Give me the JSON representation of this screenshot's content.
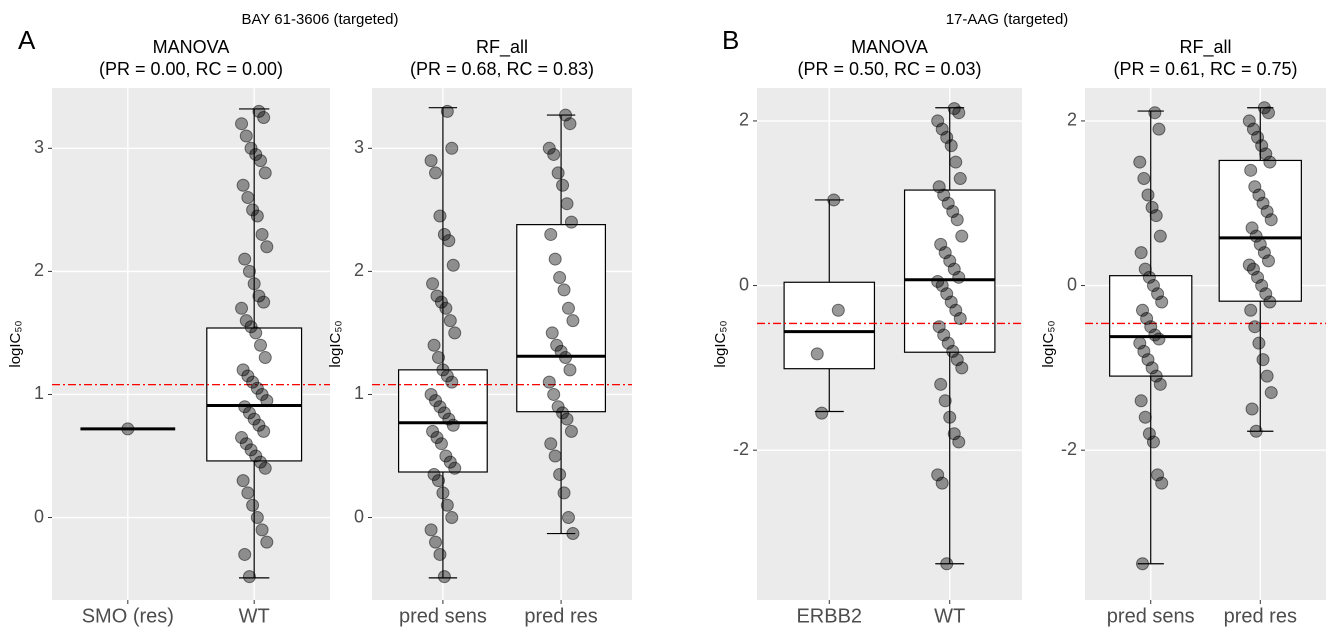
{
  "figure": {
    "panels": [
      {
        "letter": "A",
        "title": "BAY 61-3606 (targeted)"
      },
      {
        "letter": "B",
        "title": "17-AAG (targeted)"
      }
    ]
  },
  "chart_data": [
    {
      "type": "box",
      "title": "MANOVA",
      "subtitle": "(PR = 0.00, RC = 0.00)",
      "ylabel": "logIC₅₀",
      "categories": [
        "SMO (res)",
        "WT"
      ],
      "boxes": [
        {
          "whisker_low": 0.72,
          "q1": 0.72,
          "median": 0.72,
          "q3": 0.72,
          "whisker_high": 0.72
        },
        {
          "whisker_low": -0.49,
          "q1": 0.46,
          "median": 0.91,
          "q3": 1.54,
          "whisker_high": 3.32
        }
      ],
      "points": [
        [
          0.72
        ],
        [
          3.3,
          3.25,
          3.2,
          3.1,
          3.0,
          2.95,
          2.9,
          2.8,
          2.7,
          2.6,
          2.5,
          2.45,
          2.3,
          2.2,
          2.1,
          2.0,
          1.9,
          1.8,
          1.75,
          1.7,
          1.6,
          1.55,
          1.5,
          1.4,
          1.3,
          1.2,
          1.15,
          1.1,
          1.05,
          1.0,
          0.95,
          0.9,
          0.85,
          0.8,
          0.75,
          0.7,
          0.65,
          0.6,
          0.55,
          0.5,
          0.45,
          0.4,
          0.3,
          0.2,
          0.1,
          0.0,
          -0.1,
          -0.2,
          -0.3,
          -0.48
        ]
      ],
      "hline": 1.08,
      "hline_color": "#ff0000",
      "point_color": "#000000",
      "ylim": [
        -0.67,
        3.49
      ],
      "yticks": [
        0,
        1,
        2,
        3
      ],
      "grid": true
    },
    {
      "type": "box",
      "title": "RF_all",
      "subtitle": "(PR = 0.68, RC = 0.83)",
      "ylabel": "logIC₅₀",
      "categories": [
        "pred sens",
        "pred res"
      ],
      "boxes": [
        {
          "whisker_low": -0.49,
          "q1": 0.37,
          "median": 0.77,
          "q3": 1.2,
          "whisker_high": 3.33
        },
        {
          "whisker_low": -0.13,
          "q1": 0.86,
          "median": 1.31,
          "q3": 2.38,
          "whisker_high": 3.27
        }
      ],
      "points": [
        [
          3.3,
          3.0,
          2.9,
          2.8,
          2.45,
          2.3,
          2.25,
          2.05,
          1.9,
          1.8,
          1.75,
          1.7,
          1.6,
          1.5,
          1.4,
          1.3,
          1.2,
          1.15,
          1.1,
          1.0,
          0.95,
          0.9,
          0.85,
          0.8,
          0.75,
          0.7,
          0.65,
          0.6,
          0.5,
          0.45,
          0.4,
          0.35,
          0.3,
          0.2,
          0.1,
          0.0,
          -0.1,
          -0.2,
          -0.3,
          -0.48
        ],
        [
          3.27,
          3.2,
          3.0,
          2.95,
          2.8,
          2.7,
          2.55,
          2.4,
          2.3,
          2.1,
          1.95,
          1.85,
          1.7,
          1.6,
          1.5,
          1.4,
          1.35,
          1.3,
          1.2,
          1.1,
          1.0,
          0.9,
          0.85,
          0.8,
          0.7,
          0.6,
          0.5,
          0.35,
          0.2,
          0.0,
          -0.13
        ]
      ],
      "hline": 1.08,
      "hline_color": "#ff0000",
      "point_color": "#000000",
      "ylim": [
        -0.67,
        3.49
      ],
      "yticks": [
        0,
        1,
        2,
        3
      ],
      "grid": true
    },
    {
      "type": "box",
      "title": "MANOVA",
      "subtitle": "(PR = 0.50, RC = 0.03)",
      "ylabel": "logIC₅₀",
      "categories": [
        "ERBB2",
        "WT"
      ],
      "boxes": [
        {
          "whisker_low": -1.53,
          "q1": -1.01,
          "median": -0.56,
          "q3": 0.04,
          "whisker_high": 1.04
        },
        {
          "whisker_low": -3.38,
          "q1": -0.81,
          "median": 0.07,
          "q3": 1.16,
          "whisker_high": 2.16
        }
      ],
      "points": [
        [
          1.04,
          -0.3,
          -0.83,
          -1.55
        ],
        [
          2.15,
          2.1,
          2.0,
          1.9,
          1.8,
          1.7,
          1.5,
          1.3,
          1.2,
          1.1,
          1.0,
          0.9,
          0.8,
          0.6,
          0.5,
          0.4,
          0.3,
          0.2,
          0.1,
          0.05,
          0.0,
          -0.1,
          -0.2,
          -0.3,
          -0.4,
          -0.5,
          -0.6,
          -0.7,
          -0.8,
          -0.9,
          -1.0,
          -1.2,
          -1.4,
          -1.6,
          -1.8,
          -1.9,
          -2.3,
          -2.4,
          -3.38
        ]
      ],
      "hline": -0.46,
      "hline_color": "#ff0000",
      "point_color": "#000000",
      "ylim": [
        -3.82,
        2.4
      ],
      "yticks": [
        -2,
        0,
        2
      ],
      "grid": true
    },
    {
      "type": "box",
      "title": "RF_all",
      "subtitle": "(PR = 0.61, RC = 0.75)",
      "ylabel": "logIC₅₀",
      "categories": [
        "pred sens",
        "pred res"
      ],
      "boxes": [
        {
          "whisker_low": -3.38,
          "q1": -1.1,
          "median": -0.62,
          "q3": 0.12,
          "whisker_high": 2.12
        },
        {
          "whisker_low": -1.77,
          "q1": -0.19,
          "median": 0.58,
          "q3": 1.52,
          "whisker_high": 2.16
        }
      ],
      "points": [
        [
          2.1,
          1.9,
          1.5,
          1.3,
          1.1,
          0.95,
          0.85,
          0.6,
          0.4,
          0.2,
          0.1,
          0.0,
          -0.1,
          -0.2,
          -0.3,
          -0.4,
          -0.5,
          -0.6,
          -0.65,
          -0.7,
          -0.8,
          -0.9,
          -1.0,
          -1.1,
          -1.2,
          -1.4,
          -1.6,
          -1.8,
          -1.9,
          -2.3,
          -2.4,
          -3.38
        ],
        [
          2.16,
          2.1,
          2.0,
          1.9,
          1.8,
          1.7,
          1.6,
          1.5,
          1.4,
          1.2,
          1.1,
          1.0,
          0.9,
          0.8,
          0.7,
          0.6,
          0.5,
          0.4,
          0.3,
          0.25,
          0.2,
          0.1,
          0.0,
          -0.1,
          -0.2,
          -0.3,
          -0.5,
          -0.7,
          -0.9,
          -1.1,
          -1.3,
          -1.5,
          -1.77
        ]
      ],
      "hline": -0.46,
      "hline_color": "#ff0000",
      "point_color": "#000000",
      "ylim": [
        -3.82,
        2.4
      ],
      "yticks": [
        -2,
        0,
        2
      ],
      "grid": true
    }
  ]
}
